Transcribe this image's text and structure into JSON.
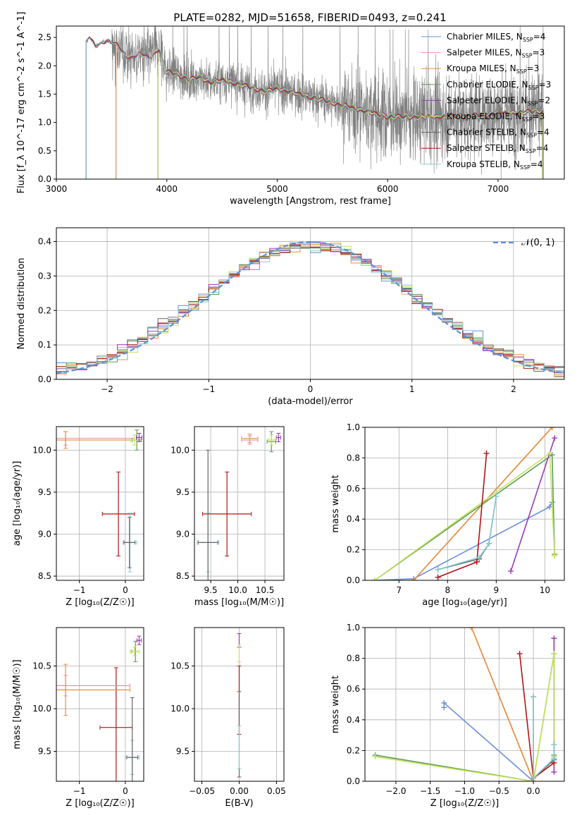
{
  "title": "PLATE=0282, MJD=51658, FIBERID=0493, z=0.241",
  "colors": {
    "Chabrier MILES": "#6b8fdc",
    "Salpeter MILES": "#ef8eaa",
    "Kroupa MILES": "#e5913a",
    "Chabrier ELODIE": "#5d9b5a",
    "Salpeter ELODIE": "#9a3bb5",
    "Kroupa ELODIE": "#c5e35a",
    "Chabrier STELIB": "#666666",
    "Salpeter STELIB": "#b01515",
    "Kroupa STELIB": "#85cdd2",
    "data": "#808080",
    "gauss": "#5b8fd6"
  },
  "chart_data": [
    {
      "id": "spectrum",
      "type": "line",
      "xlabel": "wavelength [Angstrom, rest frame]",
      "ylabel": "Flux [f_λ 10^-17 erg cm^-2 s^-1 A^-1]",
      "xlim": [
        3000,
        7600
      ],
      "ylim": [
        0,
        2.7
      ],
      "xticks": [
        3000,
        4000,
        5000,
        6000,
        7000
      ],
      "yticks": [
        0.0,
        0.5,
        1.0,
        1.5,
        2.0,
        2.5
      ],
      "legend_loc": "upper right",
      "series": [
        {
          "name": "Chabrier MILES",
          "nssp": "4",
          "range": [
            3540,
            7410
          ]
        },
        {
          "name": "Salpeter MILES",
          "nssp": "3",
          "range": [
            3540,
            7410
          ]
        },
        {
          "name": "Kroupa MILES",
          "nssp": "3",
          "range": [
            3540,
            7410
          ]
        },
        {
          "name": "Chabrier ELODIE",
          "nssp": "3",
          "range": [
            3920,
            7400
          ]
        },
        {
          "name": "Salpeter ELODIE",
          "nssp": "2",
          "range": [
            3920,
            7400
          ]
        },
        {
          "name": "Kroupa ELODIE",
          "nssp": "3",
          "range": [
            3920,
            7400
          ]
        },
        {
          "name": "Chabrier STELIB",
          "nssp": "4",
          "range": [
            3270,
            7410
          ]
        },
        {
          "name": "Salpeter STELIB",
          "nssp": "4",
          "range": [
            3270,
            7410
          ]
        },
        {
          "name": "Kroupa STELIB",
          "nssp": "4",
          "range": [
            3270,
            7410
          ]
        }
      ],
      "continuum": {
        "x": [
          3270,
          3300,
          3350,
          3400,
          3450,
          3500,
          3560,
          3620,
          3680,
          3760,
          3840,
          3930,
          3990,
          4100,
          4200,
          4300,
          4400,
          4500,
          4700,
          4900,
          5000,
          5200,
          5500,
          5800,
          6000,
          6200,
          6500,
          6800,
          7000,
          7200,
          7400
        ],
        "y": [
          2.4,
          2.5,
          2.35,
          2.4,
          2.45,
          2.4,
          2.35,
          2.2,
          2.15,
          2.2,
          2.15,
          2.3,
          1.9,
          1.85,
          1.75,
          1.8,
          1.7,
          1.75,
          1.65,
          1.55,
          1.6,
          1.5,
          1.35,
          1.2,
          1.1,
          1.1,
          1.1,
          1.12,
          1.15,
          1.18,
          1.2
        ]
      }
    },
    {
      "id": "residuals",
      "type": "line",
      "xlabel": "(data-model)/error",
      "ylabel": "Normed distribution",
      "xlim": [
        -2.5,
        2.5
      ],
      "ylim": [
        0,
        0.44
      ],
      "xticks": [
        -2,
        -1,
        0,
        1,
        2
      ],
      "yticks": [
        0.0,
        0.1,
        0.2,
        0.3,
        0.4
      ],
      "bin_width": 0.1,
      "gauss_label": "𝒩(0, 1)",
      "legend_loc": "upper right"
    },
    {
      "id": "age_vs_Z",
      "type": "scatter",
      "xlabel": "Z [log₁₀(Z/Z☉)]",
      "ylabel": "age  [log₁₀(age/yr)]",
      "xlim": [
        -1.5,
        0.4
      ],
      "ylim": [
        8.45,
        10.28
      ],
      "xticks": [
        -1,
        0
      ],
      "yticks": [
        8.5,
        9.0,
        9.5,
        10.0
      ],
      "points": [
        {
          "series": "Salpeter STELIB",
          "x": -0.15,
          "y": 9.24,
          "xerr": 0.35,
          "yerr": 0.5
        },
        {
          "series": "Kroupa STELIB",
          "x": 0.1,
          "y": 8.9,
          "xerr": 0.15,
          "yerr": 0.35
        },
        {
          "series": "Chabrier STELIB",
          "x": 0.09,
          "y": 8.9,
          "xerr": 0.12,
          "yerr": 0.3
        },
        {
          "series": "Salpeter MILES",
          "x": -1.3,
          "y": 10.14,
          "xerr": 1.5,
          "yerr": 0.08
        },
        {
          "series": "Kroupa MILES",
          "x": -1.3,
          "y": 10.12,
          "xerr": 1.5,
          "yerr": 0.1
        },
        {
          "series": "Chabrier ELODIE",
          "x": 0.25,
          "y": 10.12,
          "xerr": 0.1,
          "yerr": 0.12
        },
        {
          "series": "Kroupa ELODIE",
          "x": 0.2,
          "y": 10.12,
          "xerr": 0.08,
          "yerr": 0.06
        },
        {
          "series": "Salpeter ELODIE",
          "x": 0.3,
          "y": 10.15,
          "xerr": 0.06,
          "yerr": 0.05
        }
      ]
    },
    {
      "id": "age_vs_mass",
      "type": "scatter",
      "xlabel": "mass [log₁₀(M/M☉)]",
      "ylabel": "",
      "xlim": [
        9.2,
        10.85
      ],
      "ylim": [
        8.45,
        10.28
      ],
      "xticks": [
        9.5,
        10.0,
        10.5
      ],
      "yticks": [
        8.5,
        9.0,
        9.5,
        10.0
      ],
      "points": [
        {
          "series": "Salpeter STELIB",
          "x": 9.8,
          "y": 9.24,
          "xerr": 0.45,
          "yerr": 0.5
        },
        {
          "series": "Kroupa STELIB",
          "x": 9.45,
          "y": 8.9,
          "xerr": 0.2,
          "yerr": 0.35
        },
        {
          "series": "Chabrier STELIB",
          "x": 9.45,
          "y": 8.9,
          "xerr": 0.18,
          "yerr": 1.1
        },
        {
          "series": "Kroupa MILES",
          "x": 10.22,
          "y": 10.14,
          "xerr": 0.15,
          "yerr": 0.05
        },
        {
          "series": "Salpeter MILES",
          "x": 10.22,
          "y": 10.12,
          "xerr": 0.15,
          "yerr": 0.05
        },
        {
          "series": "Chabrier ELODIE",
          "x": 10.62,
          "y": 10.1,
          "xerr": 0.08,
          "yerr": 0.12
        },
        {
          "series": "Kroupa ELODIE",
          "x": 10.62,
          "y": 10.12,
          "xerr": 0.06,
          "yerr": 0.06
        },
        {
          "series": "Salpeter ELODIE",
          "x": 10.75,
          "y": 10.15,
          "xerr": 0.04,
          "yerr": 0.05
        }
      ]
    },
    {
      "id": "weight_vs_age",
      "type": "line",
      "xlabel": "age  [log₁₀(age/yr)]",
      "ylabel": "mass weight",
      "xlim": [
        6.3,
        10.4
      ],
      "ylim": [
        0,
        1.0
      ],
      "xticks": [
        7,
        8,
        9,
        10
      ],
      "yticks": [
        0.0,
        0.2,
        0.4,
        0.6,
        0.8,
        1.0
      ],
      "series": [
        {
          "name": "Chabrier MILES",
          "x": [
            6.5,
            7.3,
            10.1,
            10.15
          ],
          "y": [
            0.0,
            0.01,
            0.48,
            0.51
          ]
        },
        {
          "name": "Salpeter MILES",
          "x": [
            7.3,
            10.15
          ],
          "y": [
            0.0,
            1.0
          ]
        },
        {
          "name": "Kroupa MILES",
          "x": [
            7.3,
            10.15
          ],
          "y": [
            0.0,
            1.0
          ]
        },
        {
          "name": "Chabrier ELODIE",
          "x": [
            6.5,
            10.15,
            10.2
          ],
          "y": [
            0.0,
            0.82,
            0.17
          ]
        },
        {
          "name": "Salpeter ELODIE",
          "x": [
            9.3,
            10.2
          ],
          "y": [
            0.06,
            0.93
          ]
        },
        {
          "name": "Kroupa ELODIE",
          "x": [
            6.5,
            10.1,
            10.2
          ],
          "y": [
            0.0,
            0.83,
            0.16
          ]
        },
        {
          "name": "Chabrier STELIB",
          "x": [
            7.8,
            8.65,
            8.85,
            9.0
          ],
          "y": [
            0.07,
            0.14,
            0.24,
            0.55
          ]
        },
        {
          "name": "Salpeter STELIB",
          "x": [
            7.8,
            8.6,
            8.8
          ],
          "y": [
            0.02,
            0.12,
            0.83
          ]
        },
        {
          "name": "Kroupa STELIB",
          "x": [
            7.8,
            8.65,
            8.85,
            9.0
          ],
          "y": [
            0.07,
            0.15,
            0.24,
            0.55
          ]
        }
      ]
    },
    {
      "id": "mass_vs_Z",
      "type": "scatter",
      "xlabel": "Z [log₁₀(Z/Z☉)]",
      "ylabel": "mass [log₁₀(M/M☉)]",
      "xlim": [
        -1.5,
        0.4
      ],
      "ylim": [
        9.15,
        10.95
      ],
      "xticks": [
        -1,
        0
      ],
      "yticks": [
        9.5,
        10.0,
        10.5
      ],
      "points": [
        {
          "series": "Salpeter STELIB",
          "x": -0.2,
          "y": 9.78,
          "xerr": 0.35,
          "yerr": 0.7
        },
        {
          "series": "Kroupa STELIB",
          "x": 0.15,
          "y": 9.43,
          "xerr": 0.15,
          "yerr": 0.2
        },
        {
          "series": "Chabrier STELIB",
          "x": 0.15,
          "y": 9.43,
          "xerr": 0.12,
          "yerr": 0.7
        },
        {
          "series": "Salpeter MILES",
          "x": -1.3,
          "y": 10.27,
          "xerr": 1.4,
          "yerr": 0.12
        },
        {
          "series": "Kroupa MILES",
          "x": -1.3,
          "y": 10.22,
          "xerr": 1.4,
          "yerr": 0.3
        },
        {
          "series": "Chabrier ELODIE",
          "x": 0.22,
          "y": 10.67,
          "xerr": 0.08,
          "yerr": 0.12
        },
        {
          "series": "Kroupa ELODIE",
          "x": 0.2,
          "y": 10.67,
          "xerr": 0.1,
          "yerr": 0.05
        },
        {
          "series": "Salpeter ELODIE",
          "x": 0.3,
          "y": 10.8,
          "xerr": 0.05,
          "yerr": 0.05
        }
      ]
    },
    {
      "id": "mass_vs_ebv",
      "type": "scatter",
      "xlabel": "E(B-V)",
      "ylabel": "",
      "xlim": [
        -0.06,
        0.06
      ],
      "ylim": [
        9.15,
        10.95
      ],
      "xticks": [
        -0.05,
        0.0,
        0.05
      ],
      "yticks": [
        9.5,
        10.0,
        10.5
      ],
      "points": [
        {
          "series": "Salpeter ELODIE",
          "x": 0.0,
          "y": 10.8,
          "xerr": 0.0,
          "yerr": 0.08
        },
        {
          "series": "Kroupa ELODIE",
          "x": 0.0,
          "y": 10.65,
          "xerr": 0.0,
          "yerr": 0.1
        },
        {
          "series": "Salpeter STELIB",
          "x": 0.0,
          "y": 10.1,
          "xerr": 0.0,
          "yerr": 0.4
        },
        {
          "series": "Chabrier STELIB",
          "x": 0.0,
          "y": 9.7,
          "xerr": 0.0,
          "yerr": 0.5
        },
        {
          "series": "Kroupa STELIB",
          "x": 0.0,
          "y": 9.55,
          "xerr": 0.0,
          "yerr": 0.25
        }
      ]
    },
    {
      "id": "weight_vs_Z",
      "type": "line",
      "xlabel": "Z [log₁₀(Z/Z☉)]",
      "ylabel": "mass weight",
      "xlim": [
        -2.45,
        0.45
      ],
      "ylim": [
        0,
        1.0
      ],
      "xticks": [
        -2.0,
        -1.5,
        -1.0,
        -0.5,
        0.0
      ],
      "yticks": [
        0.0,
        0.2,
        0.4,
        0.6,
        0.8,
        1.0
      ],
      "series": [
        {
          "name": "Chabrier MILES",
          "x": [
            -1.3,
            -1.3,
            0.0
          ],
          "y": [
            0.48,
            0.51,
            0.0
          ]
        },
        {
          "name": "Salpeter MILES",
          "x": [
            -0.9,
            0.0
          ],
          "y": [
            1.0,
            0.0
          ]
        },
        {
          "name": "Kroupa MILES",
          "x": [
            -0.9,
            0.0
          ],
          "y": [
            1.0,
            0.0
          ]
        },
        {
          "name": "Chabrier ELODIE",
          "x": [
            -2.3,
            0.0,
            0.3,
            0.3
          ],
          "y": [
            0.17,
            0.0,
            0.83,
            0.17
          ]
        },
        {
          "name": "Salpeter ELODIE",
          "x": [
            0.3,
            0.3
          ],
          "y": [
            0.93,
            0.06
          ]
        },
        {
          "name": "Kroupa ELODIE",
          "x": [
            -2.3,
            0.0,
            0.3,
            0.3
          ],
          "y": [
            0.16,
            0.0,
            0.83,
            0.16
          ]
        },
        {
          "name": "Chabrier STELIB",
          "x": [
            0.0,
            0.0,
            0.3,
            0.3
          ],
          "y": [
            0.55,
            0.02,
            0.14,
            0.24
          ]
        },
        {
          "name": "Salpeter STELIB",
          "x": [
            -0.2,
            0.0,
            0.3
          ],
          "y": [
            0.83,
            0.02,
            0.12
          ]
        },
        {
          "name": "Kroupa STELIB",
          "x": [
            0.0,
            0.0,
            0.3,
            0.3
          ],
          "y": [
            0.55,
            0.02,
            0.15,
            0.24
          ]
        }
      ]
    }
  ]
}
